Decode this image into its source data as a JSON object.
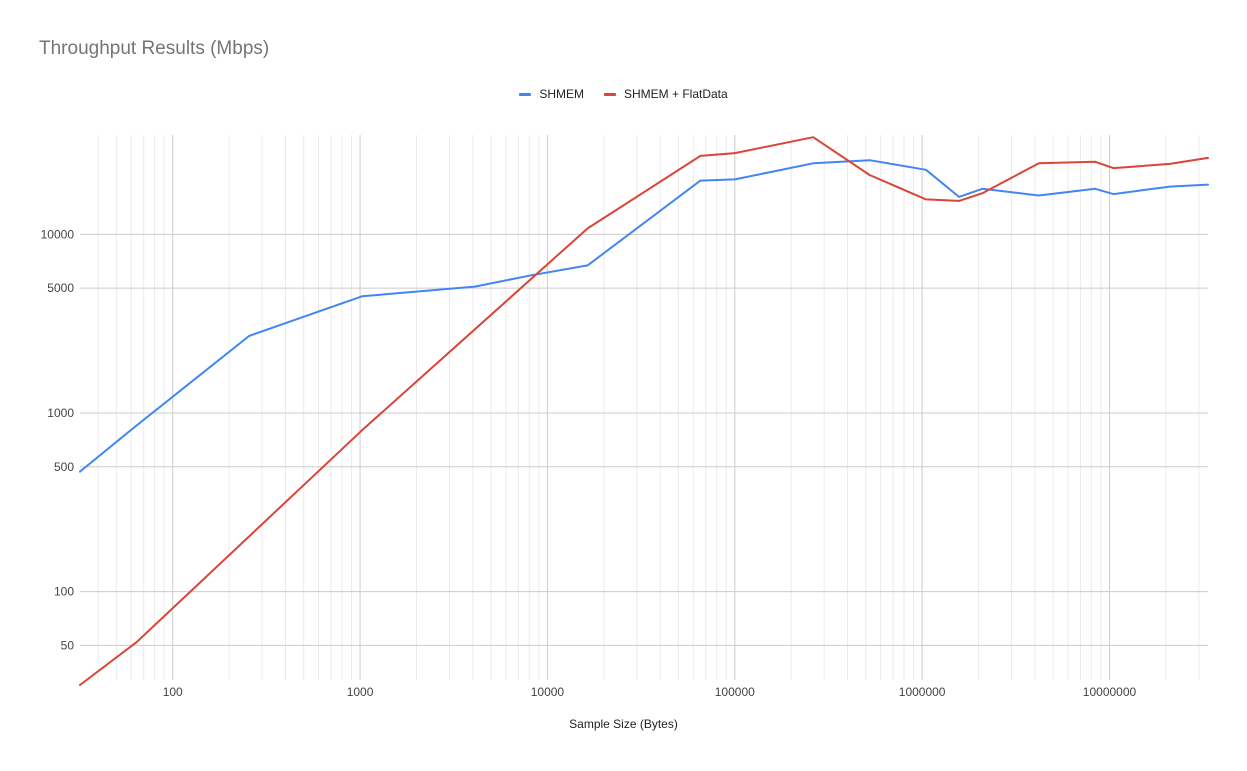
{
  "chart_data": {
    "type": "line",
    "title": "Throughput Results (Mbps)",
    "xlabel": "Sample Size (Bytes)",
    "ylabel": "",
    "x_scale": "log",
    "y_scale": "log",
    "xlim": [
      32,
      33554432
    ],
    "ylim": [
      32,
      36000
    ],
    "x_ticks": [
      {
        "v": 100,
        "label": "100"
      },
      {
        "v": 1000,
        "label": "1000"
      },
      {
        "v": 10000,
        "label": "10000"
      },
      {
        "v": 100000,
        "label": "100000"
      },
      {
        "v": 1000000,
        "label": "1000000"
      },
      {
        "v": 10000000,
        "label": "10000000"
      }
    ],
    "y_ticks": [
      {
        "v": 50,
        "label": "50"
      },
      {
        "v": 100,
        "label": "100"
      },
      {
        "v": 500,
        "label": "500"
      },
      {
        "v": 1000,
        "label": "1000"
      },
      {
        "v": 5000,
        "label": "5000"
      },
      {
        "v": 10000,
        "label": "10000"
      }
    ],
    "grid": true,
    "legend_position": "top-center",
    "series": [
      {
        "name": "SHMEM",
        "color": "#4285f4",
        "points": [
          [
            32,
            470
          ],
          [
            64,
            850
          ],
          [
            256,
            2700
          ],
          [
            1024,
            4500
          ],
          [
            4096,
            5100
          ],
          [
            8192,
            5900
          ],
          [
            16384,
            6700
          ],
          [
            65536,
            20000
          ],
          [
            100000,
            20300
          ],
          [
            262144,
            25000
          ],
          [
            524288,
            26000
          ],
          [
            1048576,
            23000
          ],
          [
            1572864,
            16200
          ],
          [
            2097152,
            18000
          ],
          [
            4194304,
            16500
          ],
          [
            8388608,
            18000
          ],
          [
            10485760,
            16800
          ],
          [
            20971520,
            18500
          ],
          [
            33554432,
            19000
          ]
        ]
      },
      {
        "name": "SHMEM + FlatData",
        "color": "#db4437",
        "points": [
          [
            32,
            30
          ],
          [
            64,
            52
          ],
          [
            1024,
            800
          ],
          [
            16384,
            10800
          ],
          [
            65536,
            27500
          ],
          [
            100000,
            28500
          ],
          [
            262144,
            35000
          ],
          [
            524288,
            21500
          ],
          [
            1048576,
            15700
          ],
          [
            1572864,
            15400
          ],
          [
            2097152,
            17000
          ],
          [
            4194304,
            25000
          ],
          [
            8388608,
            25500
          ],
          [
            10485760,
            23500
          ],
          [
            20971520,
            24800
          ],
          [
            33554432,
            26800
          ]
        ]
      }
    ]
  }
}
